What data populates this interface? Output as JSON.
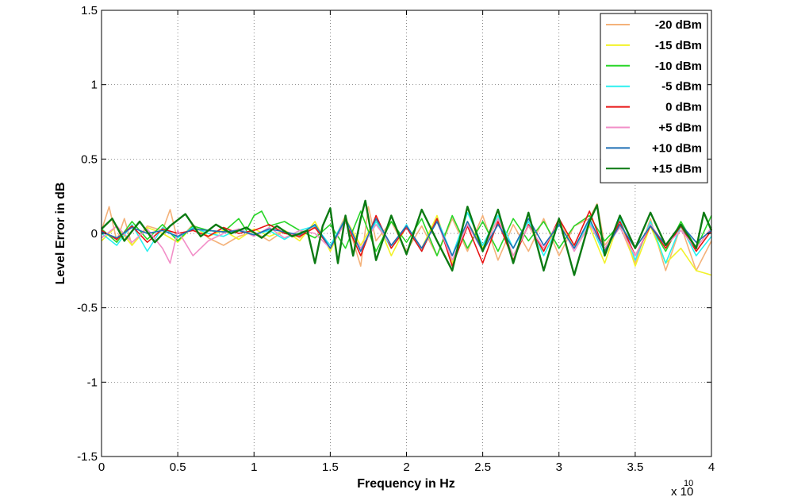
{
  "chart_data": {
    "type": "line",
    "xlabel": "Frequency in Hz",
    "ylabel": "Level Error in dB",
    "x_multiplier_label": "x 10",
    "x_multiplier_exponent": "10",
    "xlim": [
      0,
      4
    ],
    "ylim": [
      -1.5,
      1.5
    ],
    "x_ticks": [
      0,
      0.5,
      1,
      1.5,
      2,
      2.5,
      3,
      3.5,
      4
    ],
    "x_tick_labels": [
      "0",
      "0.5",
      "1",
      "1.5",
      "2",
      "2.5",
      "3",
      "3.5",
      "4"
    ],
    "y_ticks": [
      -1.5,
      -1,
      -0.5,
      0,
      0.5,
      1,
      1.5
    ],
    "y_tick_labels": [
      "-1.5",
      "-1",
      "-0.5",
      "0",
      "0.5",
      "1",
      "1.5"
    ],
    "grid": true,
    "legend_position": "top-right",
    "series": [
      {
        "name": "-20 dBm",
        "color": "#f4b27a",
        "x": [
          0,
          0.05,
          0.1,
          0.15,
          0.2,
          0.3,
          0.4,
          0.45,
          0.5,
          0.6,
          0.7,
          0.8,
          0.9,
          1.0,
          1.1,
          1.2,
          1.3,
          1.4,
          1.5,
          1.6,
          1.7,
          1.75,
          1.8,
          1.9,
          2.0,
          2.1,
          2.2,
          2.3,
          2.4,
          2.5,
          2.6,
          2.7,
          2.8,
          2.9,
          3.0,
          3.1,
          3.2,
          3.25,
          3.3,
          3.4,
          3.5,
          3.6,
          3.7,
          3.8,
          3.9,
          4.0
        ],
        "y": [
          0.02,
          0.18,
          -0.05,
          0.1,
          -0.08,
          0.05,
          0.02,
          0.16,
          -0.05,
          0.06,
          -0.03,
          -0.08,
          -0.02,
          0.01,
          -0.05,
          0.02,
          -0.03,
          0.05,
          -0.1,
          0.12,
          -0.22,
          0.18,
          -0.05,
          0.08,
          -0.12,
          0.05,
          -0.15,
          0.1,
          -0.12,
          0.12,
          -0.18,
          0.06,
          -0.12,
          0.1,
          -0.15,
          0.05,
          0.1,
          0.2,
          -0.08,
          0.05,
          -0.2,
          0.1,
          -0.25,
          0.05,
          -0.25,
          -0.05
        ]
      },
      {
        "name": "-15 dBm",
        "color": "#f2f229",
        "x": [
          0,
          0.1,
          0.2,
          0.3,
          0.4,
          0.5,
          0.6,
          0.7,
          0.8,
          0.9,
          1.0,
          1.1,
          1.2,
          1.3,
          1.4,
          1.5,
          1.6,
          1.7,
          1.8,
          1.9,
          2.0,
          2.1,
          2.2,
          2.3,
          2.4,
          2.5,
          2.6,
          2.7,
          2.8,
          2.9,
          3.0,
          3.1,
          3.2,
          3.3,
          3.4,
          3.5,
          3.6,
          3.7,
          3.8,
          3.9,
          4.0
        ],
        "y": [
          -0.05,
          0.05,
          -0.08,
          0.04,
          0.0,
          -0.06,
          0.05,
          -0.02,
          0.02,
          -0.04,
          0.03,
          -0.02,
          0.02,
          -0.05,
          0.08,
          -0.12,
          0.1,
          -0.08,
          0.1,
          -0.15,
          0.05,
          -0.1,
          0.12,
          -0.2,
          0.08,
          -0.1,
          0.1,
          -0.15,
          0.05,
          -0.12,
          0.08,
          -0.1,
          0.05,
          -0.2,
          0.1,
          -0.22,
          0.05,
          -0.2,
          -0.1,
          -0.25,
          -0.28
        ]
      },
      {
        "name": "-10 dBm",
        "color": "#28d628",
        "x": [
          0,
          0.1,
          0.2,
          0.3,
          0.4,
          0.5,
          0.6,
          0.7,
          0.8,
          0.9,
          0.95,
          1.0,
          1.05,
          1.1,
          1.2,
          1.3,
          1.4,
          1.5,
          1.6,
          1.7,
          1.8,
          1.9,
          2.0,
          2.1,
          2.2,
          2.3,
          2.4,
          2.5,
          2.6,
          2.7,
          2.8,
          2.9,
          3.0,
          3.1,
          3.2,
          3.3,
          3.4,
          3.5,
          3.6,
          3.7,
          3.8,
          3.9,
          4.0
        ],
        "y": [
          0.03,
          -0.06,
          0.08,
          -0.04,
          0.06,
          -0.05,
          0.05,
          0.02,
          0.01,
          0.1,
          0.02,
          0.12,
          0.15,
          0.05,
          0.08,
          0.02,
          -0.03,
          0.06,
          -0.1,
          0.15,
          -0.12,
          0.08,
          -0.06,
          0.1,
          -0.15,
          0.12,
          -0.1,
          0.08,
          -0.12,
          0.1,
          -0.05,
          0.08,
          -0.1,
          0.05,
          0.12,
          -0.05,
          0.06,
          -0.1,
          0.05,
          -0.12,
          0.08,
          -0.1,
          0.12
        ]
      },
      {
        "name": "-5 dBm",
        "color": "#2bf0f0",
        "x": [
          0,
          0.1,
          0.2,
          0.3,
          0.4,
          0.5,
          0.6,
          0.7,
          0.8,
          0.9,
          1.0,
          1.1,
          1.2,
          1.3,
          1.4,
          1.5,
          1.6,
          1.7,
          1.8,
          1.9,
          2.0,
          2.1,
          2.2,
          2.3,
          2.4,
          2.5,
          2.6,
          2.7,
          2.8,
          2.9,
          3.0,
          3.1,
          3.2,
          3.3,
          3.4,
          3.5,
          3.6,
          3.7,
          3.8,
          3.9,
          4.0
        ],
        "y": [
          0.0,
          -0.08,
          0.06,
          -0.12,
          0.04,
          -0.03,
          0.04,
          0.0,
          -0.02,
          0.03,
          -0.01,
          0.02,
          -0.04,
          0.02,
          0.05,
          -0.08,
          0.1,
          -0.12,
          0.08,
          -0.1,
          0.06,
          -0.12,
          0.1,
          -0.15,
          0.14,
          -0.08,
          0.12,
          -0.1,
          0.08,
          -0.15,
          0.06,
          -0.1,
          0.08,
          -0.15,
          0.1,
          -0.18,
          0.08,
          -0.2,
          0.05,
          -0.15,
          -0.02
        ]
      },
      {
        "name": "0 dBm",
        "color": "#e81414",
        "x": [
          0,
          0.1,
          0.2,
          0.3,
          0.4,
          0.5,
          0.6,
          0.7,
          0.8,
          0.9,
          1.0,
          1.1,
          1.2,
          1.3,
          1.4,
          1.5,
          1.6,
          1.7,
          1.8,
          1.9,
          2.0,
          2.1,
          2.2,
          2.3,
          2.4,
          2.5,
          2.6,
          2.7,
          2.8,
          2.9,
          3.0,
          3.1,
          3.2,
          3.3,
          3.4,
          3.5,
          3.6,
          3.7,
          3.8,
          3.9,
          4.0
        ],
        "y": [
          0.02,
          -0.04,
          0.05,
          -0.06,
          0.03,
          0.0,
          0.02,
          -0.02,
          0.04,
          0.0,
          0.02,
          0.06,
          0.0,
          -0.02,
          0.04,
          -0.1,
          0.08,
          -0.15,
          0.12,
          -0.1,
          0.04,
          -0.12,
          0.1,
          -0.22,
          0.05,
          -0.2,
          0.08,
          -0.18,
          0.06,
          -0.12,
          0.1,
          -0.08,
          0.15,
          -0.12,
          0.08,
          -0.15,
          0.05,
          -0.1,
          0.05,
          -0.12,
          0.02
        ]
      },
      {
        "name": "+5 dBm",
        "color": "#f28fc8",
        "x": [
          0,
          0.1,
          0.2,
          0.3,
          0.4,
          0.45,
          0.5,
          0.6,
          0.7,
          0.8,
          0.9,
          1.0,
          1.1,
          1.2,
          1.3,
          1.4,
          1.5,
          1.6,
          1.7,
          1.8,
          1.9,
          2.0,
          2.1,
          2.2,
          2.3,
          2.4,
          2.5,
          2.6,
          2.7,
          2.8,
          2.9,
          3.0,
          3.1,
          3.2,
          3.3,
          3.4,
          3.5,
          3.6,
          3.7,
          3.8,
          3.9,
          4.0
        ],
        "y": [
          -0.03,
          0.05,
          -0.06,
          0.03,
          -0.1,
          -0.2,
          0.02,
          -0.15,
          -0.05,
          0.0,
          0.03,
          -0.02,
          0.04,
          -0.03,
          0.02,
          0.0,
          -0.1,
          0.08,
          -0.1,
          0.06,
          -0.08,
          0.05,
          -0.1,
          0.08,
          -0.18,
          0.06,
          -0.12,
          0.1,
          -0.15,
          0.05,
          -0.1,
          0.08,
          -0.12,
          0.06,
          -0.1,
          0.04,
          -0.15,
          0.06,
          -0.08,
          0.02,
          -0.1,
          0.04
        ]
      },
      {
        "name": "+10 dBm",
        "color": "#1f6fb5",
        "x": [
          0,
          0.1,
          0.2,
          0.3,
          0.4,
          0.5,
          0.6,
          0.7,
          0.8,
          0.9,
          1.0,
          1.1,
          1.2,
          1.3,
          1.4,
          1.5,
          1.6,
          1.7,
          1.8,
          1.9,
          2.0,
          2.1,
          2.2,
          2.3,
          2.4,
          2.5,
          2.6,
          2.7,
          2.8,
          2.9,
          3.0,
          3.1,
          3.2,
          3.3,
          3.4,
          3.5,
          3.6,
          3.7,
          3.8,
          3.9,
          4.0
        ],
        "y": [
          0.01,
          -0.03,
          0.04,
          0.0,
          0.02,
          -0.02,
          0.03,
          0.02,
          0.01,
          0.02,
          -0.01,
          0.03,
          0.01,
          -0.01,
          0.06,
          -0.1,
          0.1,
          -0.12,
          0.1,
          -0.08,
          0.05,
          -0.1,
          0.08,
          -0.15,
          0.08,
          -0.12,
          0.06,
          -0.1,
          0.1,
          -0.08,
          0.06,
          -0.1,
          0.1,
          -0.12,
          0.06,
          -0.1,
          0.05,
          -0.08,
          0.06,
          -0.06,
          0.02
        ]
      },
      {
        "name": "+15 dBm",
        "color": "#0b7a12",
        "x": [
          0,
          0.07,
          0.15,
          0.25,
          0.35,
          0.45,
          0.55,
          0.65,
          0.75,
          0.85,
          0.95,
          1.05,
          1.15,
          1.25,
          1.35,
          1.4,
          1.45,
          1.5,
          1.55,
          1.6,
          1.65,
          1.7,
          1.73,
          1.8,
          1.9,
          2.0,
          2.1,
          2.2,
          2.3,
          2.4,
          2.5,
          2.6,
          2.7,
          2.8,
          2.9,
          3.0,
          3.1,
          3.2,
          3.25,
          3.3,
          3.4,
          3.5,
          3.6,
          3.7,
          3.8,
          3.9,
          3.95,
          4.0
        ],
        "y": [
          0.03,
          0.1,
          -0.05,
          0.08,
          -0.06,
          0.05,
          0.13,
          -0.02,
          0.06,
          0.0,
          0.04,
          -0.03,
          0.05,
          -0.02,
          0.02,
          -0.2,
          0.05,
          0.17,
          -0.2,
          0.12,
          -0.15,
          0.1,
          0.22,
          -0.18,
          0.12,
          -0.14,
          0.16,
          -0.05,
          -0.25,
          0.18,
          -0.12,
          0.16,
          -0.2,
          0.14,
          -0.25,
          0.1,
          -0.28,
          0.08,
          0.19,
          -0.15,
          0.12,
          -0.1,
          0.14,
          -0.08,
          0.06,
          -0.1,
          0.14,
          0.02
        ]
      }
    ]
  }
}
